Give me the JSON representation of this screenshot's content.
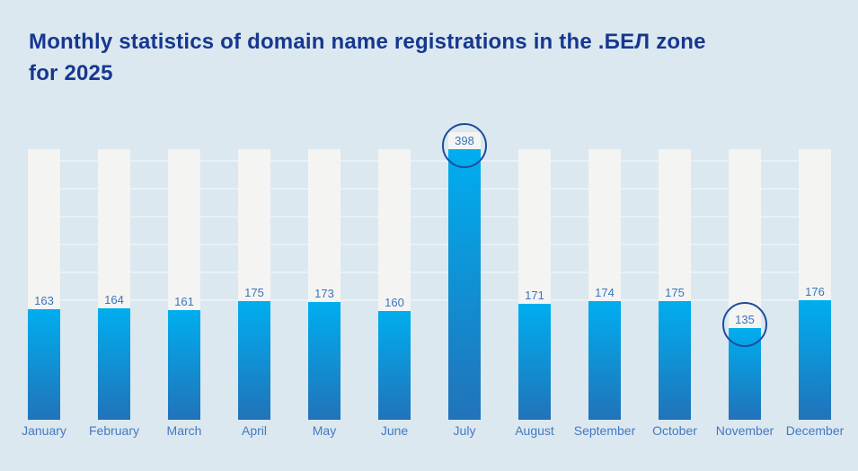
{
  "page": {
    "title_line1": "Monthly statistics of domain name registrations in the .БЕЛ zone",
    "title_line2": "for 2025"
  },
  "chart_data": {
    "type": "bar",
    "title": "Monthly statistics of domain name registrations in the .БЕЛ zone for 2025",
    "categories": [
      "January",
      "February",
      "March",
      "April",
      "May",
      "June",
      "July",
      "August",
      "September",
      "October",
      "November",
      "December"
    ],
    "values": [
      163,
      164,
      161,
      175,
      173,
      160,
      398,
      171,
      174,
      175,
      135,
      176
    ],
    "value_labels_shown": true,
    "highlighted_categories": [
      "July",
      "November"
    ],
    "ylim": [
      0,
      398
    ],
    "xlabel": "",
    "ylabel": "",
    "grid": "horizontal",
    "legend": "none"
  },
  "colors": {
    "background": "#dbe8ef",
    "track": "#f4f4f3",
    "gridline": "#e9f1f6",
    "title_text": "#17378f",
    "value_label_text": "#3a75ba",
    "month_label_text": "#4579c1",
    "highlight_circle": "#1d4c9f",
    "bar_gradient_top": "#00aeef",
    "bar_gradient_bottom": "#2173b9"
  }
}
